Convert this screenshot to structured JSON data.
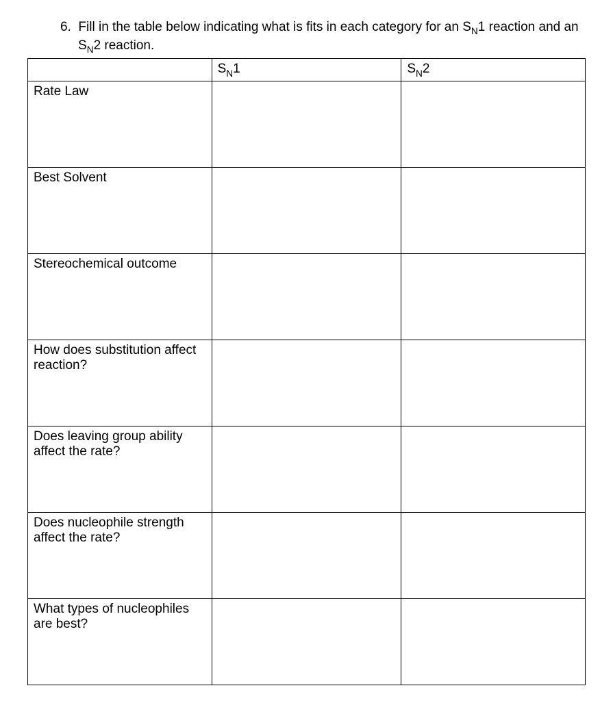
{
  "question": {
    "number": "6.",
    "text_part1": "Fill in the table below indicating what is fits in each category for an S",
    "text_sub1": "N",
    "text_part2": "1 reaction and an S",
    "text_sub2": "N",
    "text_part3": "2 reaction."
  },
  "table": {
    "headers": {
      "category": "",
      "sn1_pre": "S",
      "sn1_sub": "N",
      "sn1_post": "1",
      "sn2_pre": "S",
      "sn2_sub": "N",
      "sn2_post": "2"
    },
    "rows": [
      {
        "label": "Rate Law",
        "sn1": "",
        "sn2": ""
      },
      {
        "label": "Best Solvent",
        "sn1": "",
        "sn2": ""
      },
      {
        "label": "Stereochemical outcome",
        "sn1": "",
        "sn2": ""
      },
      {
        "label": "How does substitution affect reaction?",
        "sn1": "",
        "sn2": ""
      },
      {
        "label": "Does leaving group ability affect the rate?",
        "sn1": "",
        "sn2": ""
      },
      {
        "label": "Does nucleophile strength affect the rate?",
        "sn1": "",
        "sn2": ""
      },
      {
        "label": "What types of nucleophiles are best?",
        "sn1": "",
        "sn2": ""
      }
    ]
  }
}
